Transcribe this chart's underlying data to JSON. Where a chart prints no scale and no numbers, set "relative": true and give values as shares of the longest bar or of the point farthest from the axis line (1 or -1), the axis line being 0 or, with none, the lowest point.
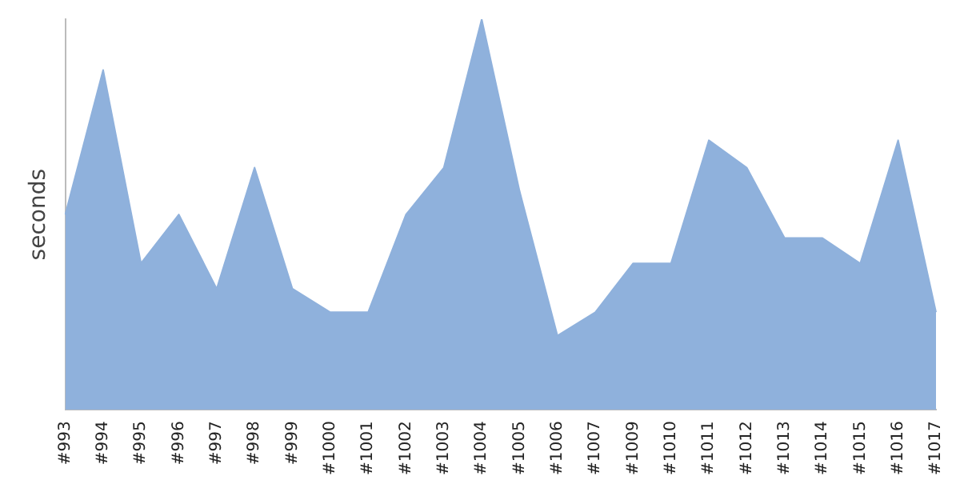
{
  "chart_data": {
    "type": "area",
    "ylabel": "seconds",
    "relative": true,
    "color": "#8fb1dc",
    "grid": false,
    "legend": false,
    "categories": [
      "#993",
      "#994",
      "#995",
      "#996",
      "#997",
      "#998",
      "#999",
      "#1000",
      "#1001",
      "#1002",
      "#1003",
      "#1004",
      "#1005",
      "#1006",
      "#1007",
      "#1009",
      "#1010",
      "#1011",
      "#1012",
      "#1013",
      "#1014",
      "#1015",
      "#1016",
      "#1017"
    ],
    "values": [
      0.5,
      0.87,
      0.375,
      0.5,
      0.31,
      0.62,
      0.31,
      0.25,
      0.25,
      0.5,
      0.62,
      1,
      0.56,
      0.19,
      0.25,
      0.375,
      0.375,
      0.69,
      0.62,
      0.44,
      0.44,
      0.375,
      0.69,
      0.25
    ]
  }
}
